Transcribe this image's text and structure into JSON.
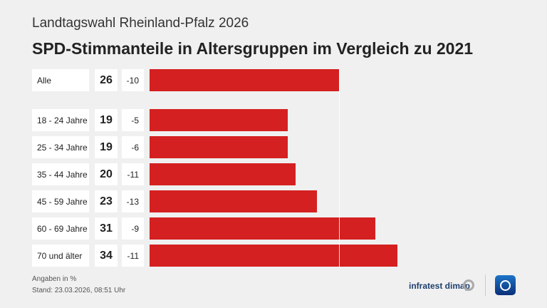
{
  "header": {
    "supertitle": "Landtagswahl Rheinland-Pfalz 2026",
    "title": "SPD-Stimmanteile in Altersgruppen im Vergleich zu 2021"
  },
  "chart_data": {
    "type": "bar",
    "orientation": "horizontal",
    "categories": [
      "Alle",
      "18 - 24 Jahre",
      "25 - 34 Jahre",
      "35 - 44 Jahre",
      "45 - 59 Jahre",
      "60 - 69 Jahre",
      "70 und älter"
    ],
    "values": [
      26,
      19,
      19,
      20,
      23,
      31,
      34
    ],
    "value_labels": [
      "26",
      "19",
      "19",
      "20",
      "23",
      "31",
      "34"
    ],
    "diff_labels": [
      "-10",
      "-5",
      "-6",
      "-11",
      "-13",
      "-9",
      "-11"
    ],
    "reference_value": 26,
    "bar_color": "#d42020",
    "xlim": [
      0,
      40
    ]
  },
  "footer": {
    "unit": "Angaben in %",
    "stand": "Stand:  23.03.2026, 08:51 Uhr",
    "brand": "infratest dimap"
  }
}
